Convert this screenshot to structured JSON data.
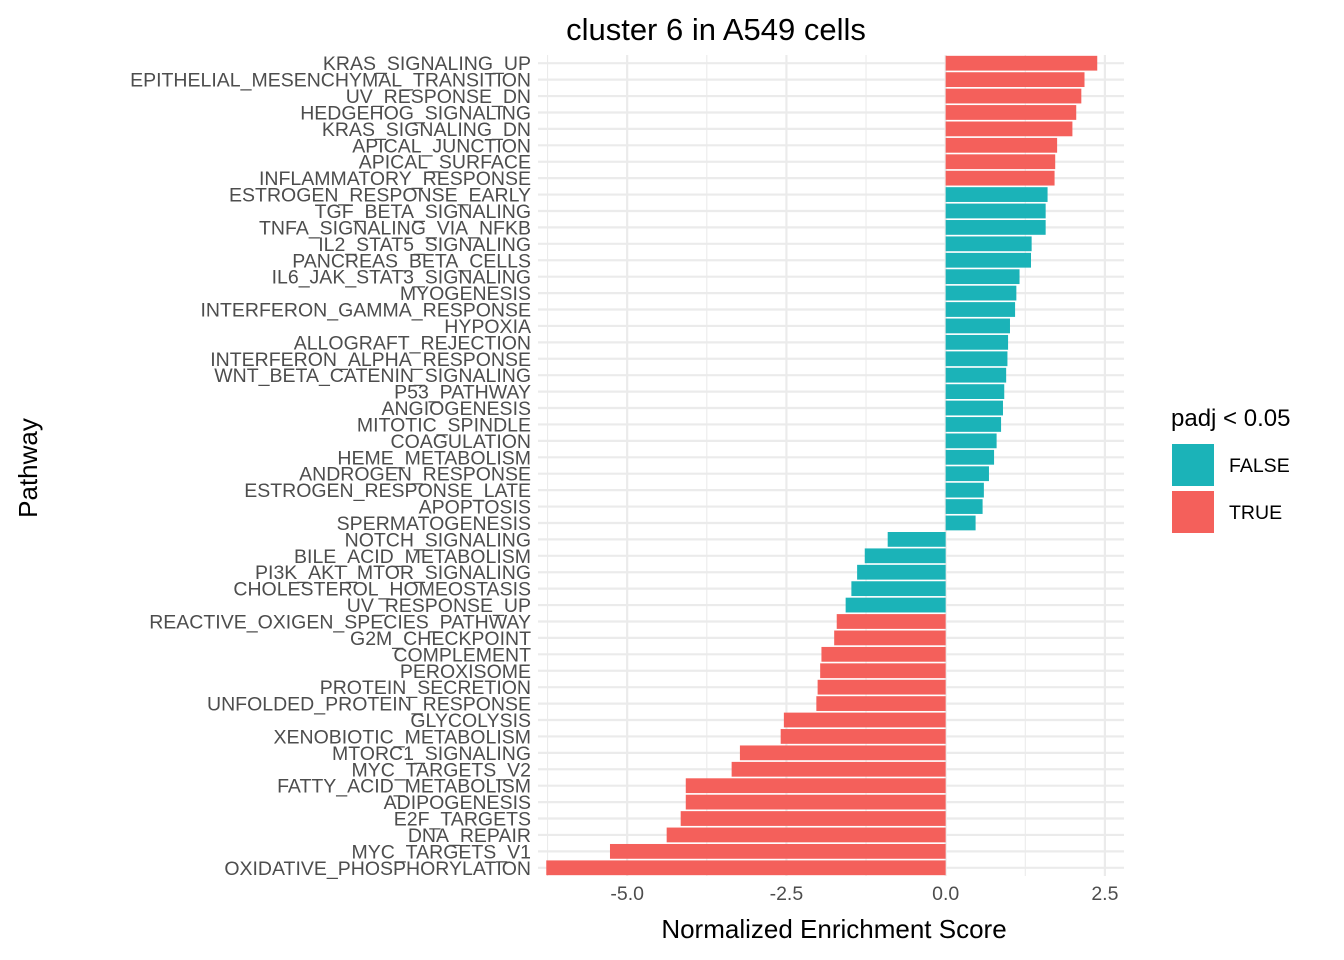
{
  "chart_data": {
    "type": "bar",
    "orientation": "horizontal",
    "title": "cluster 6 in A549 cells",
    "xlabel": "Normalized Enrichment Score",
    "ylabel": "Pathway",
    "xlim": [
      -6.4,
      2.8
    ],
    "xticks": [
      -5.0,
      -2.5,
      0.0,
      2.5
    ],
    "xtick_labels": [
      "-5.0",
      "-2.5",
      "0.0",
      "2.5"
    ],
    "grid": true,
    "legend": {
      "title": "padj < 0.05",
      "position": "right",
      "entries": [
        {
          "label": "FALSE",
          "color": "#1bb3b8"
        },
        {
          "label": "TRUE",
          "color": "#f4605b"
        }
      ]
    },
    "colors": {
      "FALSE": "#1bb3b8",
      "TRUE": "#f4605b"
    },
    "bars": [
      {
        "pathway": "KRAS_SIGNALING_UP",
        "nes": 2.38,
        "padj_lt_005": "TRUE"
      },
      {
        "pathway": "EPITHELIAL_MESENCHYMAL_TRANSITION",
        "nes": 2.18,
        "padj_lt_005": "TRUE"
      },
      {
        "pathway": "UV_RESPONSE_DN",
        "nes": 2.13,
        "padj_lt_005": "TRUE"
      },
      {
        "pathway": "HEDGEHOG_SIGNALING",
        "nes": 2.05,
        "padj_lt_005": "TRUE"
      },
      {
        "pathway": "KRAS_SIGNALING_DN",
        "nes": 1.99,
        "padj_lt_005": "TRUE"
      },
      {
        "pathway": "APICAL_JUNCTION",
        "nes": 1.75,
        "padj_lt_005": "TRUE"
      },
      {
        "pathway": "APICAL_SURFACE",
        "nes": 1.72,
        "padj_lt_005": "TRUE"
      },
      {
        "pathway": "INFLAMMATORY_RESPONSE",
        "nes": 1.71,
        "padj_lt_005": "TRUE"
      },
      {
        "pathway": "ESTROGEN_RESPONSE_EARLY",
        "nes": 1.6,
        "padj_lt_005": "FALSE"
      },
      {
        "pathway": "TGF_BETA_SIGNALING",
        "nes": 1.57,
        "padj_lt_005": "FALSE"
      },
      {
        "pathway": "TNFA_SIGNALING_VIA_NFKB",
        "nes": 1.57,
        "padj_lt_005": "FALSE"
      },
      {
        "pathway": "IL2_STAT5_SIGNALING",
        "nes": 1.35,
        "padj_lt_005": "FALSE"
      },
      {
        "pathway": "PANCREAS_BETA_CELLS",
        "nes": 1.34,
        "padj_lt_005": "FALSE"
      },
      {
        "pathway": "IL6_JAK_STAT3_SIGNALING",
        "nes": 1.16,
        "padj_lt_005": "FALSE"
      },
      {
        "pathway": "MYOGENESIS",
        "nes": 1.11,
        "padj_lt_005": "FALSE"
      },
      {
        "pathway": "INTERFERON_GAMMA_RESPONSE",
        "nes": 1.09,
        "padj_lt_005": "FALSE"
      },
      {
        "pathway": "HYPOXIA",
        "nes": 1.01,
        "padj_lt_005": "FALSE"
      },
      {
        "pathway": "ALLOGRAFT_REJECTION",
        "nes": 0.98,
        "padj_lt_005": "FALSE"
      },
      {
        "pathway": "INTERFERON_ALPHA_RESPONSE",
        "nes": 0.97,
        "padj_lt_005": "FALSE"
      },
      {
        "pathway": "WNT_BETA_CATENIN_SIGNALING",
        "nes": 0.95,
        "padj_lt_005": "FALSE"
      },
      {
        "pathway": "P53_PATHWAY",
        "nes": 0.92,
        "padj_lt_005": "FALSE"
      },
      {
        "pathway": "ANGIOGENESIS",
        "nes": 0.9,
        "padj_lt_005": "FALSE"
      },
      {
        "pathway": "MITOTIC_SPINDLE",
        "nes": 0.87,
        "padj_lt_005": "FALSE"
      },
      {
        "pathway": "COAGULATION",
        "nes": 0.8,
        "padj_lt_005": "FALSE"
      },
      {
        "pathway": "HEME_METABOLISM",
        "nes": 0.76,
        "padj_lt_005": "FALSE"
      },
      {
        "pathway": "ANDROGEN_RESPONSE",
        "nes": 0.68,
        "padj_lt_005": "FALSE"
      },
      {
        "pathway": "ESTROGEN_RESPONSE_LATE",
        "nes": 0.6,
        "padj_lt_005": "FALSE"
      },
      {
        "pathway": "APOPTOSIS",
        "nes": 0.58,
        "padj_lt_005": "FALSE"
      },
      {
        "pathway": "SPERMATOGENESIS",
        "nes": 0.47,
        "padj_lt_005": "FALSE"
      },
      {
        "pathway": "NOTCH_SIGNALING",
        "nes": -0.91,
        "padj_lt_005": "FALSE"
      },
      {
        "pathway": "BILE_ACID_METABOLISM",
        "nes": -1.27,
        "padj_lt_005": "FALSE"
      },
      {
        "pathway": "PI3K_AKT_MTOR_SIGNALING",
        "nes": -1.39,
        "padj_lt_005": "FALSE"
      },
      {
        "pathway": "CHOLESTEROL_HOMEOSTASIS",
        "nes": -1.48,
        "padj_lt_005": "FALSE"
      },
      {
        "pathway": "UV_RESPONSE_UP",
        "nes": -1.57,
        "padj_lt_005": "FALSE"
      },
      {
        "pathway": "REACTIVE_OXIGEN_SPECIES_PATHWAY",
        "nes": -1.71,
        "padj_lt_005": "TRUE"
      },
      {
        "pathway": "G2M_CHECKPOINT",
        "nes": -1.75,
        "padj_lt_005": "TRUE"
      },
      {
        "pathway": "COMPLEMENT",
        "nes": -1.95,
        "padj_lt_005": "TRUE"
      },
      {
        "pathway": "PEROXISOME",
        "nes": -1.97,
        "padj_lt_005": "TRUE"
      },
      {
        "pathway": "PROTEIN_SECRETION",
        "nes": -2.01,
        "padj_lt_005": "TRUE"
      },
      {
        "pathway": "UNFOLDED_PROTEIN_RESPONSE",
        "nes": -2.03,
        "padj_lt_005": "TRUE"
      },
      {
        "pathway": "GLYCOLYSIS",
        "nes": -2.54,
        "padj_lt_005": "TRUE"
      },
      {
        "pathway": "XENOBIOTIC_METABOLISM",
        "nes": -2.59,
        "padj_lt_005": "TRUE"
      },
      {
        "pathway": "MTORC1_SIGNALING",
        "nes": -3.23,
        "padj_lt_005": "TRUE"
      },
      {
        "pathway": "MYC_TARGETS_V2",
        "nes": -3.36,
        "padj_lt_005": "TRUE"
      },
      {
        "pathway": "FATTY_ACID_METABOLISM",
        "nes": -4.08,
        "padj_lt_005": "TRUE"
      },
      {
        "pathway": "ADIPOGENESIS",
        "nes": -4.08,
        "padj_lt_005": "TRUE"
      },
      {
        "pathway": "E2F_TARGETS",
        "nes": -4.16,
        "padj_lt_005": "TRUE"
      },
      {
        "pathway": "DNA_REPAIR",
        "nes": -4.38,
        "padj_lt_005": "TRUE"
      },
      {
        "pathway": "MYC_TARGETS_V1",
        "nes": -5.27,
        "padj_lt_005": "TRUE"
      },
      {
        "pathway": "OXIDATIVE_PHOSPHORYLATION",
        "nes": -6.27,
        "padj_lt_005": "TRUE"
      }
    ]
  }
}
